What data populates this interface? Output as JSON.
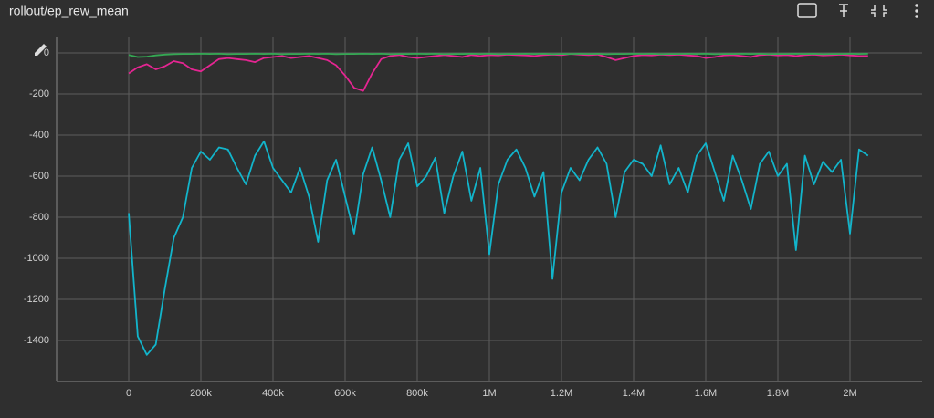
{
  "chart_data": {
    "type": "line",
    "title": "rollout/ep_rew_mean",
    "x": [
      0,
      25000,
      50000,
      75000,
      100000,
      125000,
      150000,
      175000,
      200000,
      225000,
      250000,
      275000,
      300000,
      325000,
      350000,
      375000,
      400000,
      425000,
      450000,
      475000,
      500000,
      525000,
      550000,
      575000,
      600000,
      625000,
      650000,
      675000,
      700000,
      725000,
      750000,
      775000,
      800000,
      825000,
      850000,
      875000,
      900000,
      925000,
      950000,
      975000,
      1000000,
      1025000,
      1050000,
      1075000,
      1100000,
      1125000,
      1150000,
      1175000,
      1200000,
      1225000,
      1250000,
      1275000,
      1300000,
      1325000,
      1350000,
      1375000,
      1400000,
      1425000,
      1450000,
      1475000,
      1500000,
      1525000,
      1550000,
      1575000,
      1600000,
      1625000,
      1650000,
      1675000,
      1700000,
      1725000,
      1750000,
      1775000,
      1800000,
      1825000,
      1850000,
      1875000,
      1900000,
      1925000,
      1950000,
      1975000,
      2000000,
      2025000,
      2050000
    ],
    "series": [
      {
        "color": "#12b5cb",
        "values": [
          -780,
          -1380,
          -1470,
          -1420,
          -1150,
          -900,
          -800,
          -560,
          -480,
          -520,
          -460,
          -470,
          -560,
          -640,
          -500,
          -430,
          -560,
          -620,
          -680,
          -560,
          -700,
          -920,
          -620,
          -520,
          -700,
          -880,
          -590,
          -460,
          -620,
          -800,
          -520,
          -440,
          -650,
          -600,
          -510,
          -780,
          -600,
          -480,
          -720,
          -560,
          -980,
          -640,
          -520,
          -470,
          -560,
          -700,
          -580,
          -1100,
          -680,
          -560,
          -620,
          -520,
          -460,
          -540,
          -800,
          -580,
          -520,
          -540,
          -600,
          -450,
          -640,
          -560,
          -680,
          -500,
          -440,
          -580,
          -720,
          -500,
          -620,
          -760,
          -540,
          -480,
          -600,
          -540,
          -960,
          -500,
          -640,
          -530,
          -580,
          -520,
          -880,
          -470,
          -500
        ]
      },
      {
        "color": "#e52592",
        "values": [
          -100,
          -70,
          -55,
          -80,
          -65,
          -40,
          -50,
          -80,
          -90,
          -60,
          -30,
          -25,
          -30,
          -35,
          -45,
          -25,
          -20,
          -15,
          -25,
          -20,
          -15,
          -25,
          -35,
          -60,
          -110,
          -170,
          -185,
          -100,
          -30,
          -15,
          -10,
          -20,
          -25,
          -20,
          -15,
          -10,
          -15,
          -20,
          -10,
          -15,
          -10,
          -12,
          -8,
          -10,
          -12,
          -15,
          -10,
          -8,
          -10,
          -5,
          -8,
          -10,
          -8,
          -20,
          -35,
          -25,
          -15,
          -10,
          -12,
          -8,
          -10,
          -8,
          -12,
          -15,
          -25,
          -20,
          -12,
          -10,
          -15,
          -20,
          -10,
          -8,
          -12,
          -10,
          -15,
          -10,
          -8,
          -12,
          -10,
          -8,
          -12,
          -15,
          -15
        ]
      },
      {
        "color": "#34a853",
        "values": [
          -10,
          -20,
          -18,
          -12,
          -8,
          -6,
          -5,
          -5,
          -4,
          -5,
          -4,
          -6,
          -5,
          -5,
          -4,
          -5,
          -4,
          -6,
          -5,
          -5,
          -4,
          -5,
          -4,
          -6,
          -5,
          -5,
          -4,
          -5,
          -4,
          -6,
          -5,
          -5,
          -4,
          -5,
          -4,
          -6,
          -5,
          -5,
          -4,
          -5,
          -4,
          -6,
          -5,
          -5,
          -4,
          -5,
          -4,
          -6,
          -5,
          -5,
          -4,
          -5,
          -4,
          -6,
          -5,
          -5,
          -4,
          -5,
          -4,
          -6,
          -5,
          -5,
          -4,
          -5,
          -4,
          -6,
          -5,
          -5,
          -4,
          -5,
          -4,
          -6,
          -5,
          -5,
          -4,
          -5,
          -4,
          -6,
          -5,
          -5,
          -4,
          -5,
          -4
        ]
      }
    ],
    "xlim": [
      -200000,
      2200000
    ],
    "xticks": [
      0,
      {
        "value": 200000,
        "label": "200k"
      },
      {
        "value": 400000,
        "label": "400k"
      },
      {
        "value": 600000,
        "label": "600k"
      },
      {
        "value": 800000,
        "label": "800k"
      },
      {
        "value": 1000000,
        "label": "1M"
      },
      {
        "value": 1200000,
        "label": "1.2M"
      },
      {
        "value": 1400000,
        "label": "1.4M"
      },
      {
        "value": 1600000,
        "label": "1.6M"
      },
      {
        "value": 1800000,
        "label": "1.8M"
      },
      {
        "value": 2000000,
        "label": "2M"
      }
    ],
    "ylim": [
      -1600,
      80
    ],
    "yticks": [
      -1400,
      -1200,
      -1000,
      -800,
      -600,
      -400,
      -200,
      0
    ],
    "grid": true
  }
}
